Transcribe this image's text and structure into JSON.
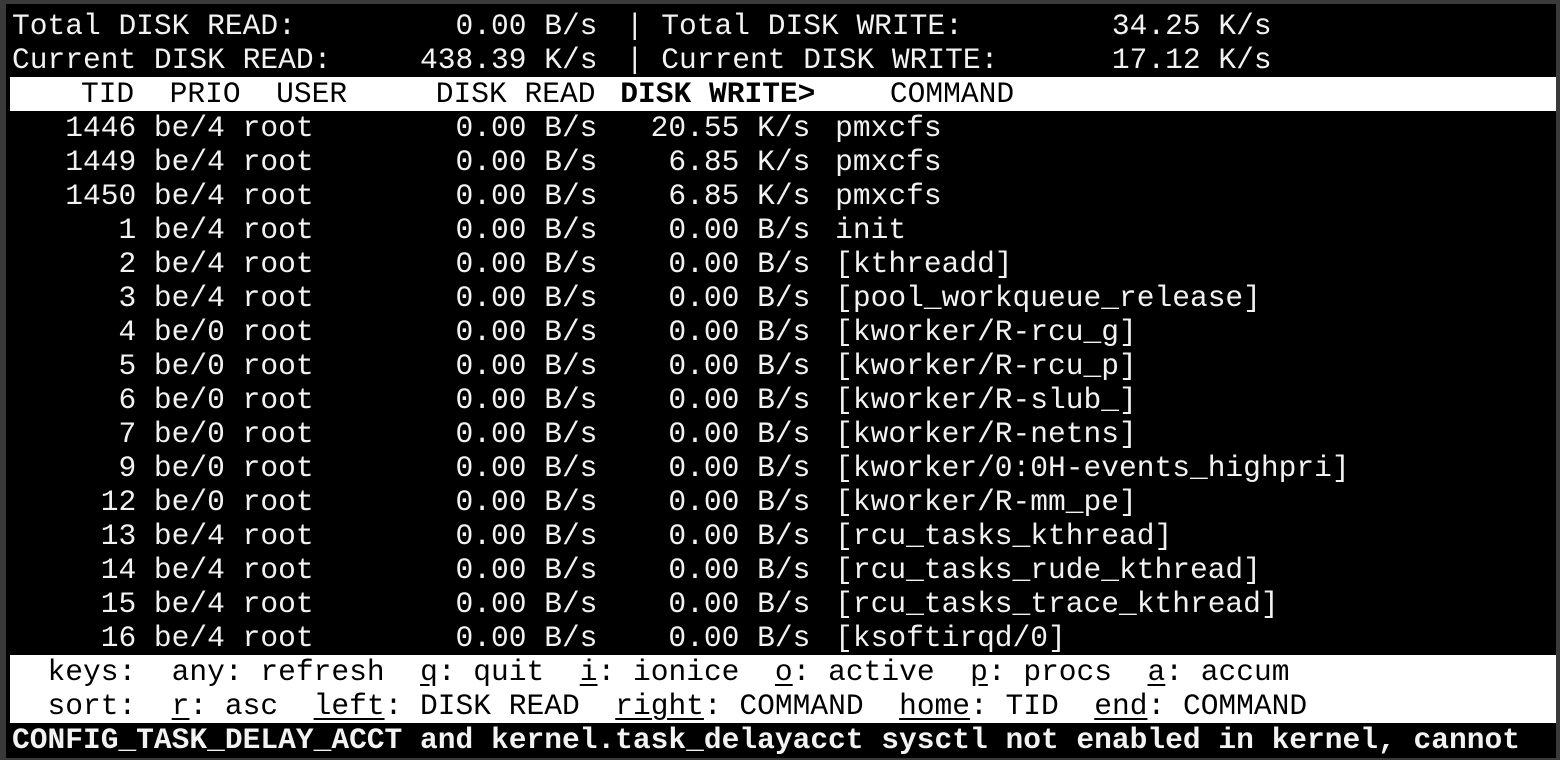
{
  "summary": {
    "total_read_label": "Total DISK READ:",
    "total_read_value": "0.00 B/s",
    "total_write_label": "Total DISK WRITE:",
    "total_write_value": "34.25 K/s",
    "current_read_label": "Current DISK READ:",
    "current_read_value": "438.39 K/s",
    "current_write_label": "Current DISK WRITE:",
    "current_write_value": "17.12 K/s",
    "separator": "|"
  },
  "columns": {
    "tid": "TID",
    "prio": "PRIO",
    "user": "USER",
    "read": "DISK READ",
    "write": "DISK WRITE>",
    "command": "COMMAND"
  },
  "sorted_column": "DISK WRITE",
  "rows": [
    {
      "tid": "1446",
      "prio": "be/4",
      "user": "root",
      "read": "0.00 B/s",
      "write": "20.55 K/s",
      "command": "pmxcfs"
    },
    {
      "tid": "1449",
      "prio": "be/4",
      "user": "root",
      "read": "0.00 B/s",
      "write": "6.85 K/s",
      "command": "pmxcfs"
    },
    {
      "tid": "1450",
      "prio": "be/4",
      "user": "root",
      "read": "0.00 B/s",
      "write": "6.85 K/s",
      "command": "pmxcfs"
    },
    {
      "tid": "1",
      "prio": "be/4",
      "user": "root",
      "read": "0.00 B/s",
      "write": "0.00 B/s",
      "command": "init"
    },
    {
      "tid": "2",
      "prio": "be/4",
      "user": "root",
      "read": "0.00 B/s",
      "write": "0.00 B/s",
      "command": "[kthreadd]"
    },
    {
      "tid": "3",
      "prio": "be/4",
      "user": "root",
      "read": "0.00 B/s",
      "write": "0.00 B/s",
      "command": "[pool_workqueue_release]"
    },
    {
      "tid": "4",
      "prio": "be/0",
      "user": "root",
      "read": "0.00 B/s",
      "write": "0.00 B/s",
      "command": "[kworker/R-rcu_g]"
    },
    {
      "tid": "5",
      "prio": "be/0",
      "user": "root",
      "read": "0.00 B/s",
      "write": "0.00 B/s",
      "command": "[kworker/R-rcu_p]"
    },
    {
      "tid": "6",
      "prio": "be/0",
      "user": "root",
      "read": "0.00 B/s",
      "write": "0.00 B/s",
      "command": "[kworker/R-slub_]"
    },
    {
      "tid": "7",
      "prio": "be/0",
      "user": "root",
      "read": "0.00 B/s",
      "write": "0.00 B/s",
      "command": "[kworker/R-netns]"
    },
    {
      "tid": "9",
      "prio": "be/0",
      "user": "root",
      "read": "0.00 B/s",
      "write": "0.00 B/s",
      "command": "[kworker/0:0H-events_highpri]"
    },
    {
      "tid": "12",
      "prio": "be/0",
      "user": "root",
      "read": "0.00 B/s",
      "write": "0.00 B/s",
      "command": "[kworker/R-mm_pe]"
    },
    {
      "tid": "13",
      "prio": "be/4",
      "user": "root",
      "read": "0.00 B/s",
      "write": "0.00 B/s",
      "command": "[rcu_tasks_kthread]"
    },
    {
      "tid": "14",
      "prio": "be/4",
      "user": "root",
      "read": "0.00 B/s",
      "write": "0.00 B/s",
      "command": "[rcu_tasks_rude_kthread]"
    },
    {
      "tid": "15",
      "prio": "be/4",
      "user": "root",
      "read": "0.00 B/s",
      "write": "0.00 B/s",
      "command": "[rcu_tasks_trace_kthread]"
    },
    {
      "tid": "16",
      "prio": "be/4",
      "user": "root",
      "read": "0.00 B/s",
      "write": "0.00 B/s",
      "command": "[ksoftirqd/0]"
    }
  ],
  "footer": {
    "keys_label": "keys:",
    "keys": [
      {
        "key": "any",
        "desc": ": refresh",
        "underline": false
      },
      {
        "key": "q",
        "desc": ": quit",
        "underline": true
      },
      {
        "key": "i",
        "desc": ": ionice",
        "underline": true
      },
      {
        "key": "o",
        "desc": ": active",
        "underline": true
      },
      {
        "key": "p",
        "desc": ": procs",
        "underline": true
      },
      {
        "key": "a",
        "desc": ": accum",
        "underline": true
      }
    ],
    "sort_label": "sort:",
    "sort": [
      {
        "key": "r",
        "desc": ": asc",
        "underline": true
      },
      {
        "key": "left",
        "desc": ": DISK READ",
        "underline": true
      },
      {
        "key": "right",
        "desc": ": COMMAND",
        "underline": true
      },
      {
        "key": "home",
        "desc": ": TID",
        "underline": true
      },
      {
        "key": "end",
        "desc": ": COMMAND",
        "underline": true
      }
    ]
  },
  "status_message": "CONFIG_TASK_DELAY_ACCT and kernel.task_delayacct sysctl not enabled in kernel, cannot",
  "colors": {
    "background": "#000000",
    "foreground": "#f2f2f2",
    "inverse_bg": "#ffffff"
  }
}
